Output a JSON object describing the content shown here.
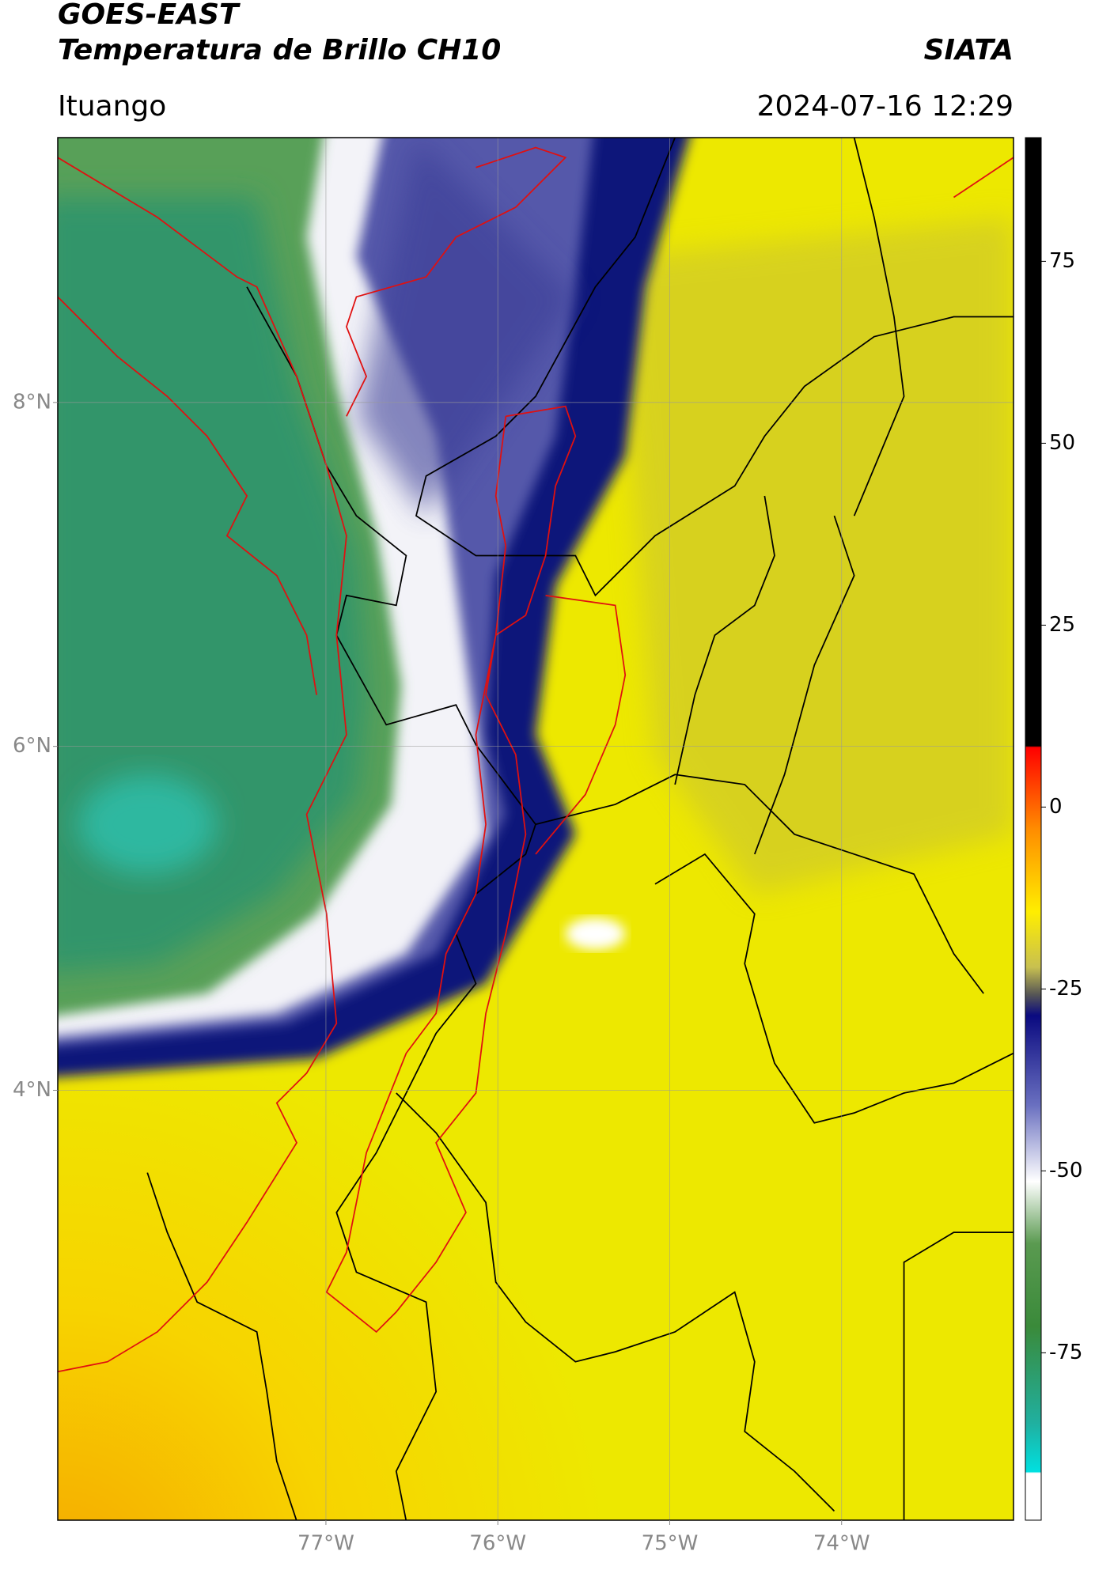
{
  "header": {
    "satellite": "GOES-EAST",
    "product": "Temperatura de Brillo CH10",
    "source": "SIATA",
    "location": "Ituango",
    "datetime": "2024-07-16 12:29"
  },
  "map": {
    "xlim": [
      -78.56,
      -73.0
    ],
    "ylim": [
      1.5,
      9.54
    ],
    "xticks": [
      {
        "value": -77,
        "label": "77°W"
      },
      {
        "value": -76,
        "label": "76°W"
      },
      {
        "value": -75,
        "label": "75°W"
      },
      {
        "value": -74,
        "label": "74°W"
      }
    ],
    "yticks": [
      {
        "value": 8,
        "label": "8°N"
      },
      {
        "value": 6,
        "label": "6°N"
      },
      {
        "value": 4,
        "label": "4°N"
      }
    ],
    "grid": true
  },
  "colorbar": {
    "clim": [
      -98,
      92
    ],
    "ticks": [
      75,
      50,
      25,
      0,
      -25,
      -50,
      -75
    ]
  }
}
